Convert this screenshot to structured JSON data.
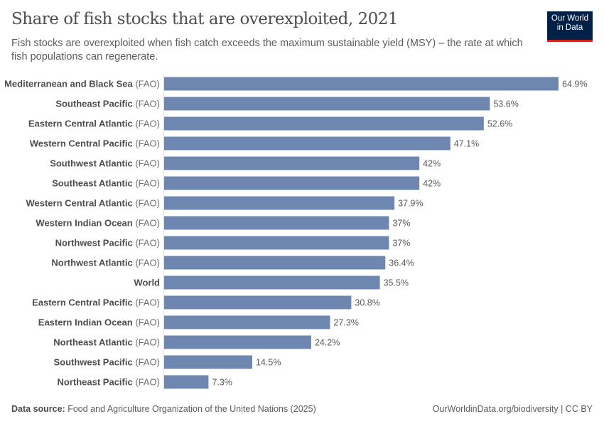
{
  "header": {
    "title": "Share of fish stocks that are overexploited, 2021",
    "subtitle": "Fish stocks are overexploited when fish catch exceeds the maximum sustainable yield (MSY) – the rate at which fish populations can regenerate.",
    "logo_text": "Our World in Data"
  },
  "chart_data": {
    "type": "bar",
    "orientation": "horizontal",
    "unit": "%",
    "bar_color": "#6d87b0",
    "categories": [
      {
        "name": "Mediterranean and Black Sea",
        "suffix": "(FAO)",
        "value": 64.9,
        "label": "64.9%"
      },
      {
        "name": "Southeast Pacific",
        "suffix": "(FAO)",
        "value": 53.6,
        "label": "53.6%"
      },
      {
        "name": "Eastern Central Atlantic",
        "suffix": "(FAO)",
        "value": 52.6,
        "label": "52.6%"
      },
      {
        "name": "Western Central Pacific",
        "suffix": "(FAO)",
        "value": 47.1,
        "label": "47.1%"
      },
      {
        "name": "Southwest Atlantic",
        "suffix": "(FAO)",
        "value": 42,
        "label": "42%"
      },
      {
        "name": "Southeast Atlantic",
        "suffix": "(FAO)",
        "value": 42,
        "label": "42%"
      },
      {
        "name": "Western Central Atlantic",
        "suffix": "(FAO)",
        "value": 37.9,
        "label": "37.9%"
      },
      {
        "name": "Western Indian Ocean",
        "suffix": "(FAO)",
        "value": 37,
        "label": "37%"
      },
      {
        "name": "Northwest Pacific",
        "suffix": "(FAO)",
        "value": 37,
        "label": "37%"
      },
      {
        "name": "Northwest Atlantic",
        "suffix": "(FAO)",
        "value": 36.4,
        "label": "36.4%"
      },
      {
        "name": "World",
        "suffix": "",
        "value": 35.5,
        "label": "35.5%"
      },
      {
        "name": "Eastern Central Pacific",
        "suffix": "(FAO)",
        "value": 30.8,
        "label": "30.8%"
      },
      {
        "name": "Eastern Indian Ocean",
        "suffix": "(FAO)",
        "value": 27.3,
        "label": "27.3%"
      },
      {
        "name": "Northeast Atlantic",
        "suffix": "(FAO)",
        "value": 24.2,
        "label": "24.2%"
      },
      {
        "name": "Southwest Pacific",
        "suffix": "(FAO)",
        "value": 14.5,
        "label": "14.5%"
      },
      {
        "name": "Northeast Pacific",
        "suffix": "(FAO)",
        "value": 7.3,
        "label": "7.3%"
      }
    ]
  },
  "footer": {
    "source_label": "Data source:",
    "source": "Food and Agriculture Organization of the United Nations (2025)",
    "url": "OurWorldinData.org/biodiversity",
    "license": "| CC BY"
  }
}
